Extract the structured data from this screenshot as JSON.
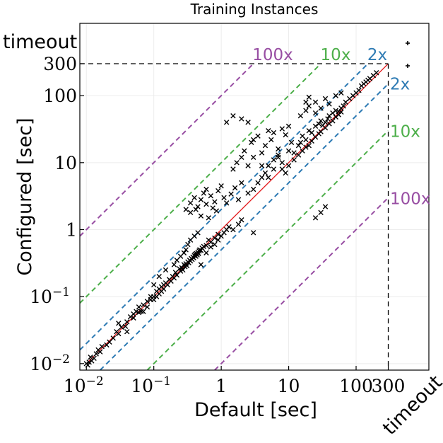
{
  "chart_data": {
    "type": "scatter",
    "title": "Training Instances",
    "xlabel": "Default [sec]",
    "ylabel": "Configured [sec]",
    "scale": "log",
    "xlim": [
      0.008,
      1200
    ],
    "ylim": [
      0.008,
      1200
    ],
    "x_ticks": [
      {
        "value": 0.01,
        "base": "10",
        "exp": "−2"
      },
      {
        "value": 0.1,
        "base": "10",
        "exp": "−1"
      },
      {
        "value": 1,
        "base": "1",
        "exp": ""
      },
      {
        "value": 10,
        "base": "10",
        "exp": ""
      },
      {
        "value": 100,
        "base": "100",
        "exp": ""
      },
      {
        "value": 300,
        "base": "300",
        "exp": ""
      }
    ],
    "y_ticks": [
      {
        "value": 0.01,
        "base": "10",
        "exp": "−2"
      },
      {
        "value": 0.1,
        "base": "10",
        "exp": "−1"
      },
      {
        "value": 1,
        "base": "1",
        "exp": ""
      },
      {
        "value": 10,
        "base": "10",
        "exp": ""
      },
      {
        "value": 100,
        "base": "100",
        "exp": ""
      },
      {
        "value": 300,
        "base": "300",
        "exp": ""
      }
    ],
    "timeout_label": "timeout",
    "timeout_value": 300,
    "ratio_lines": [
      {
        "factor": 2,
        "label": "2x",
        "color": "#2e7bb4"
      },
      {
        "factor": 10,
        "label": "10x",
        "color": "#4daf4a"
      },
      {
        "factor": 100,
        "label": "100x",
        "color": "#984ea3"
      }
    ],
    "diagonal_color": "#e41a1c",
    "grid": true,
    "marker": "x",
    "points": [
      [
        0.01,
        0.01
      ],
      [
        0.011,
        0.0105
      ],
      [
        0.012,
        0.011
      ],
      [
        0.0105,
        0.0095
      ],
      [
        0.013,
        0.012
      ],
      [
        0.0115,
        0.0125
      ],
      [
        0.014,
        0.014
      ],
      [
        0.016,
        0.015
      ],
      [
        0.017,
        0.018
      ],
      [
        0.015,
        0.016
      ],
      [
        0.02,
        0.019
      ],
      [
        0.022,
        0.021
      ],
      [
        0.025,
        0.024
      ],
      [
        0.028,
        0.03
      ],
      [
        0.03,
        0.028
      ],
      [
        0.033,
        0.035
      ],
      [
        0.038,
        0.036
      ],
      [
        0.04,
        0.042
      ],
      [
        0.045,
        0.05
      ],
      [
        0.05,
        0.048
      ],
      [
        0.055,
        0.06
      ],
      [
        0.06,
        0.058
      ],
      [
        0.07,
        0.075
      ],
      [
        0.065,
        0.06
      ],
      [
        0.08,
        0.085
      ],
      [
        0.09,
        0.09
      ],
      [
        0.1,
        0.1
      ],
      [
        0.11,
        0.12
      ],
      [
        0.12,
        0.11
      ],
      [
        0.13,
        0.14
      ],
      [
        0.14,
        0.13
      ],
      [
        0.15,
        0.16
      ],
      [
        0.16,
        0.15
      ],
      [
        0.17,
        0.18
      ],
      [
        0.18,
        0.17
      ],
      [
        0.19,
        0.2
      ],
      [
        0.2,
        0.19
      ],
      [
        0.21,
        0.23
      ],
      [
        0.22,
        0.21
      ],
      [
        0.24,
        0.26
      ],
      [
        0.25,
        0.24
      ],
      [
        0.26,
        0.27
      ],
      [
        0.27,
        0.25
      ],
      [
        0.28,
        0.3
      ],
      [
        0.29,
        0.28
      ],
      [
        0.3,
        0.31
      ],
      [
        0.31,
        0.29
      ],
      [
        0.32,
        0.33
      ],
      [
        0.33,
        0.32
      ],
      [
        0.34,
        0.35
      ],
      [
        0.35,
        0.34
      ],
      [
        0.36,
        0.37
      ],
      [
        0.37,
        0.36
      ],
      [
        0.38,
        0.39
      ],
      [
        0.39,
        0.38
      ],
      [
        0.4,
        0.41
      ],
      [
        0.41,
        0.43
      ],
      [
        0.42,
        0.4
      ],
      [
        0.43,
        0.44
      ],
      [
        0.44,
        0.42
      ],
      [
        0.45,
        0.46
      ],
      [
        0.46,
        0.44
      ],
      [
        0.47,
        0.48
      ],
      [
        0.48,
        0.5
      ],
      [
        0.5,
        0.49
      ],
      [
        0.52,
        0.53
      ],
      [
        0.55,
        0.56
      ],
      [
        0.6,
        0.58
      ],
      [
        0.65,
        0.7
      ],
      [
        0.7,
        0.65
      ],
      [
        0.8,
        0.75
      ],
      [
        0.9,
        0.85
      ],
      [
        0.1,
        0.15
      ],
      [
        0.12,
        0.2
      ],
      [
        0.15,
        0.25
      ],
      [
        0.2,
        0.3
      ],
      [
        0.22,
        0.35
      ],
      [
        0.25,
        0.4
      ],
      [
        0.28,
        0.45
      ],
      [
        0.3,
        0.5
      ],
      [
        0.32,
        0.6
      ],
      [
        0.35,
        0.7
      ],
      [
        0.4,
        0.8
      ],
      [
        0.45,
        0.9
      ],
      [
        0.3,
        2.0
      ],
      [
        0.35,
        2.5
      ],
      [
        0.4,
        3.0
      ],
      [
        0.45,
        2.2
      ],
      [
        0.5,
        2.8
      ],
      [
        0.55,
        3.5
      ],
      [
        0.6,
        4.0
      ],
      [
        0.7,
        3.2
      ],
      [
        0.8,
        2.6
      ],
      [
        0.9,
        3.8
      ],
      [
        1.0,
        4.5
      ],
      [
        1.1,
        3.0
      ],
      [
        0.35,
        1.8
      ],
      [
        0.42,
        2.0
      ],
      [
        0.5,
        1.6
      ],
      [
        0.6,
        2.4
      ],
      [
        0.65,
        1.5
      ],
      [
        0.75,
        2.1
      ],
      [
        0.85,
        1.9
      ],
      [
        1.2,
        2.5
      ],
      [
        1.4,
        3.4
      ],
      [
        1.6,
        4.2
      ],
      [
        1.8,
        2.8
      ],
      [
        2.0,
        5.0
      ],
      [
        1.5,
        8.0
      ],
      [
        1.7,
        10.0
      ],
      [
        2.0,
        12.0
      ],
      [
        2.2,
        15.0
      ],
      [
        2.5,
        9.0
      ],
      [
        2.8,
        20.0
      ],
      [
        3.0,
        12.0
      ],
      [
        3.5,
        25.0
      ],
      [
        4.0,
        14.0
      ],
      [
        4.5,
        18.0
      ],
      [
        5.0,
        30.0
      ],
      [
        5.5,
        22.0
      ],
      [
        6.0,
        28.0
      ],
      [
        7.0,
        16.0
      ],
      [
        8.0,
        32.0
      ],
      [
        9.0,
        26.0
      ],
      [
        10.0,
        35.0
      ],
      [
        11.0,
        20.0
      ],
      [
        2.0,
        45.0
      ],
      [
        1.5,
        50.0
      ],
      [
        2.5,
        40.0
      ],
      [
        1.2,
        40.0
      ],
      [
        3.0,
        22.0
      ],
      [
        4.0,
        9.0
      ],
      [
        5.0,
        6.0
      ],
      [
        6.0,
        8.0
      ],
      [
        7.0,
        12.0
      ],
      [
        8.0,
        10.0
      ],
      [
        10.0,
        15.0
      ],
      [
        12.0,
        14.0
      ],
      [
        14.0,
        18.0
      ],
      [
        15.0,
        20.0
      ],
      [
        16.0,
        25.0
      ],
      [
        18.0,
        22.0
      ],
      [
        20.0,
        30.0
      ],
      [
        22.0,
        28.0
      ],
      [
        25.0,
        35.0
      ],
      [
        28.0,
        38.0
      ],
      [
        30.0,
        42.0
      ],
      [
        32.0,
        36.0
      ],
      [
        35.0,
        40.0
      ],
      [
        38.0,
        45.0
      ],
      [
        40.0,
        50.0
      ],
      [
        45.0,
        55.0
      ],
      [
        50.0,
        60.0
      ],
      [
        55.0,
        58.0
      ],
      [
        60.0,
        65.0
      ],
      [
        65.0,
        70.0
      ],
      [
        70.0,
        80.0
      ],
      [
        80.0,
        90.0
      ],
      [
        90.0,
        100.0
      ],
      [
        100.0,
        110.0
      ],
      [
        110.0,
        120.0
      ],
      [
        120.0,
        140.0
      ],
      [
        130.0,
        150.0
      ],
      [
        140.0,
        160.0
      ],
      [
        150.0,
        170.0
      ],
      [
        160.0,
        180.0
      ],
      [
        180.0,
        200.0
      ],
      [
        200.0,
        220.0
      ],
      [
        15.0,
        50.0
      ],
      [
        18.0,
        60.0
      ],
      [
        20.0,
        70.0
      ],
      [
        25.0,
        80.0
      ],
      [
        30.0,
        65.0
      ],
      [
        35.0,
        90.0
      ],
      [
        40.0,
        75.0
      ],
      [
        20.0,
        95.0
      ],
      [
        18.0,
        80.0
      ],
      [
        25.0,
        55.0
      ],
      [
        50.0,
        100.0
      ],
      [
        60.0,
        110.0
      ],
      [
        8.0,
        8.0
      ],
      [
        9.0,
        7.0
      ],
      [
        10.0,
        9.0
      ],
      [
        12.0,
        11.0
      ],
      [
        14.0,
        13.0
      ],
      [
        16.0,
        15.0
      ],
      [
        18.0,
        17.0
      ],
      [
        20.0,
        18.0
      ],
      [
        22.0,
        21.0
      ],
      [
        25.0,
        24.0
      ],
      [
        28.0,
        27.0
      ],
      [
        30.0,
        29.0
      ],
      [
        35.0,
        33.0
      ],
      [
        40.0,
        38.0
      ],
      [
        45.0,
        42.0
      ],
      [
        50.0,
        48.0
      ],
      [
        55.0,
        52.0
      ],
      [
        60.0,
        57.0
      ],
      [
        3.0,
        4.0
      ],
      [
        2.5,
        3.5
      ],
      [
        3.5,
        5.0
      ],
      [
        4.0,
        6.0
      ],
      [
        4.5,
        7.0
      ],
      [
        5.0,
        9.0
      ],
      [
        6.0,
        11.0
      ],
      [
        7.0,
        13.0
      ],
      [
        25.0,
        1.5
      ],
      [
        35.0,
        2.2
      ],
      [
        30.0,
        1.8
      ],
      [
        3.0,
        0.9
      ],
      [
        1.5,
        1.0
      ],
      [
        1.8,
        1.2
      ],
      [
        2.0,
        1.4
      ],
      [
        0.5,
        0.3
      ],
      [
        0.6,
        0.45
      ],
      [
        0.7,
        0.55
      ],
      [
        0.8,
        0.6
      ],
      [
        0.9,
        0.7
      ],
      [
        1.0,
        0.8
      ],
      [
        1.1,
        0.9
      ],
      [
        1.2,
        1.0
      ],
      [
        1.3,
        1.1
      ],
      [
        0.03,
        0.04
      ],
      [
        0.04,
        0.03
      ],
      [
        0.05,
        0.055
      ],
      [
        0.06,
        0.07
      ],
      [
        0.07,
        0.06
      ],
      [
        0.08,
        0.07
      ],
      [
        0.09,
        0.1
      ],
      [
        0.1,
        0.09
      ],
      [
        0.11,
        0.1
      ],
      [
        0.12,
        0.13
      ],
      [
        0.13,
        0.12
      ],
      [
        0.14,
        0.15
      ]
    ],
    "timeout_points": [
      {
        "x_pos": "timeout",
        "y_pos": "timeout",
        "marker": "+"
      },
      {
        "x_pos": "timeout",
        "y_value": 300,
        "marker": "+"
      }
    ]
  }
}
